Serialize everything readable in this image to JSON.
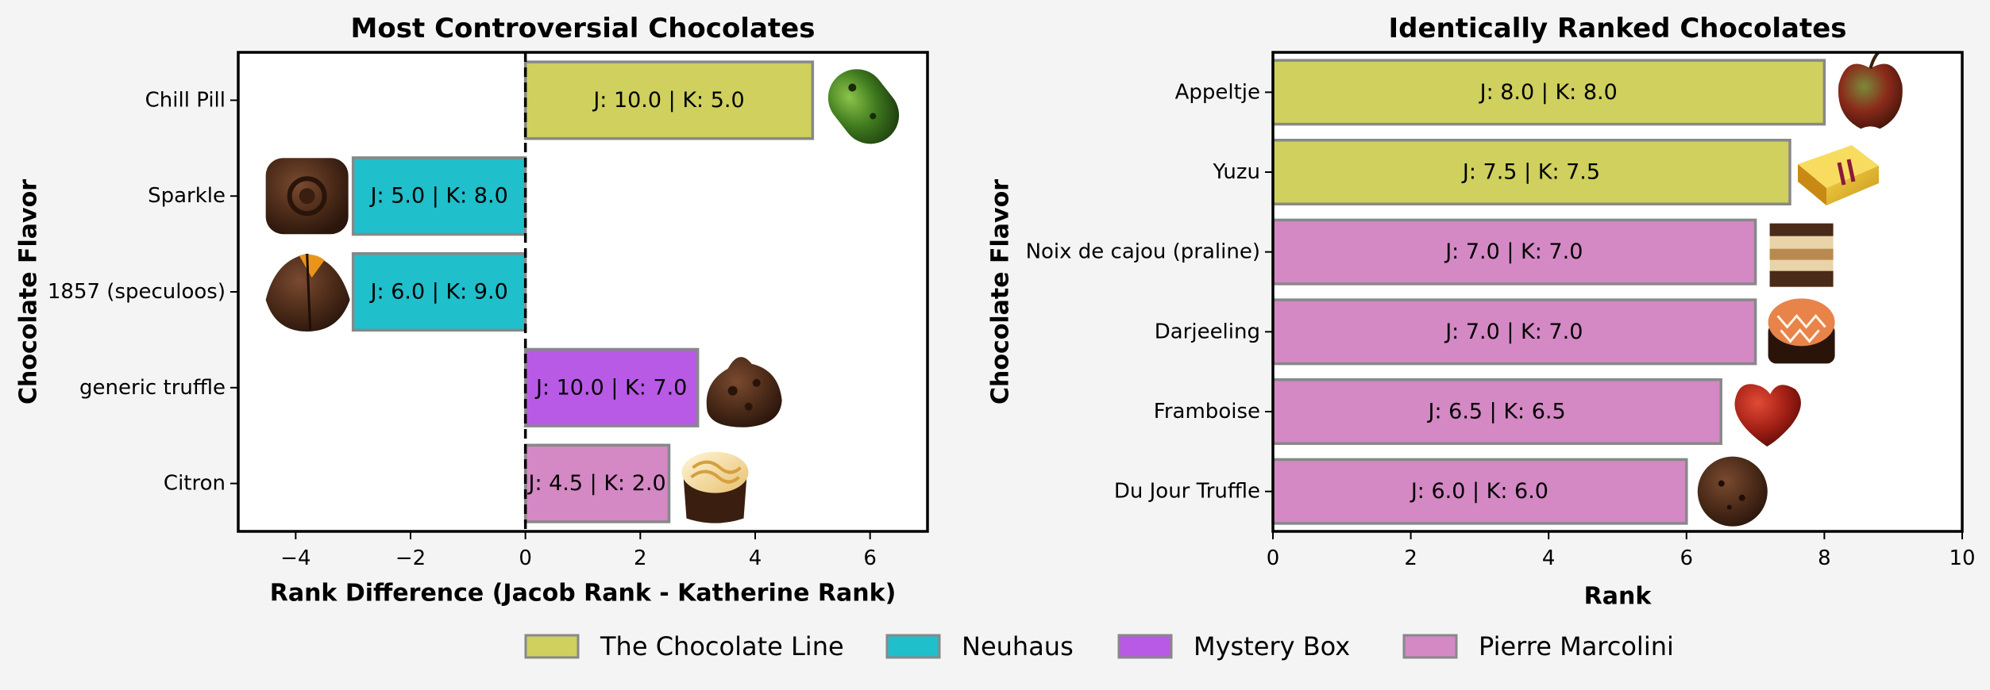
{
  "brand_colors": {
    "The Chocolate Line": "#cfd05e",
    "Neuhaus": "#1fbfcb",
    "Mystery Box": "#b85ae6",
    "Pierre Marcolini": "#d488c4"
  },
  "chart_data": [
    {
      "type": "bar",
      "orientation": "horizontal",
      "title": "Most Controversial Chocolates",
      "xlabel": "Rank Difference (Jacob Rank - Katherine Rank)",
      "ylabel": "Chocolate Flavor",
      "xlim": [
        -5,
        7
      ],
      "xticks": [
        -4,
        -2,
        0,
        2,
        4,
        6
      ],
      "zero_line": "dashed",
      "grid": false,
      "bars": [
        {
          "name": "Chill Pill",
          "value": 5.0,
          "label": "J: 10.0 | K: 5.0",
          "brand": "The Chocolate Line",
          "image": "green-capsule-chocolate"
        },
        {
          "name": "Sparkle",
          "value": -3.0,
          "label": "J: 5.0 | K: 8.0",
          "brand": "Neuhaus",
          "image": "round-dark-chocolate"
        },
        {
          "name": "1857 (speculoos)",
          "value": -3.0,
          "label": "J: 6.0 | K: 9.0",
          "brand": "Neuhaus",
          "image": "pyramid-chocolate"
        },
        {
          "name": "generic truffle",
          "value": 3.0,
          "label": "J: 10.0 | K: 7.0",
          "brand": "Mystery Box",
          "image": "cocoa-truffle"
        },
        {
          "name": "Citron",
          "value": 2.5,
          "label": "J: 4.5 | K: 2.0",
          "brand": "Pierre Marcolini",
          "image": "cream-swirl-cup-chocolate"
        }
      ]
    },
    {
      "type": "bar",
      "orientation": "horizontal",
      "title": "Identically Ranked Chocolates",
      "xlabel": "Rank",
      "ylabel": "Chocolate Flavor",
      "xlim": [
        0,
        10
      ],
      "xticks": [
        0,
        2,
        4,
        6,
        8,
        10
      ],
      "grid": false,
      "bars": [
        {
          "name": "Appeltje",
          "value": 8.0,
          "label": "J: 8.0 | K: 8.0",
          "brand": "The Chocolate Line",
          "image": "apple-chocolate"
        },
        {
          "name": "Yuzu",
          "value": 7.5,
          "label": "J: 7.5 | K: 7.5",
          "brand": "The Chocolate Line",
          "image": "yellow-bar-chocolate"
        },
        {
          "name": "Noix de cajou (praline)",
          "value": 7.0,
          "label": "J: 7.0 | K: 7.0",
          "brand": "Pierre Marcolini",
          "image": "layered-cube-chocolate"
        },
        {
          "name": "Darjeeling",
          "value": 7.0,
          "label": "J: 7.0 | K: 7.0",
          "brand": "Pierre Marcolini",
          "image": "patterned-round-chocolate"
        },
        {
          "name": "Framboise",
          "value": 6.5,
          "label": "J: 6.5 | K: 6.5",
          "brand": "Pierre Marcolini",
          "image": "red-heart-chocolate"
        },
        {
          "name": "Du Jour Truffle",
          "value": 6.0,
          "label": "J: 6.0 | K: 6.0",
          "brand": "Pierre Marcolini",
          "image": "dark-truffle"
        }
      ]
    }
  ],
  "legend": {
    "placement": "bottom-center",
    "entries": [
      "The Chocolate Line",
      "Neuhaus",
      "Mystery Box",
      "Pierre Marcolini"
    ]
  }
}
